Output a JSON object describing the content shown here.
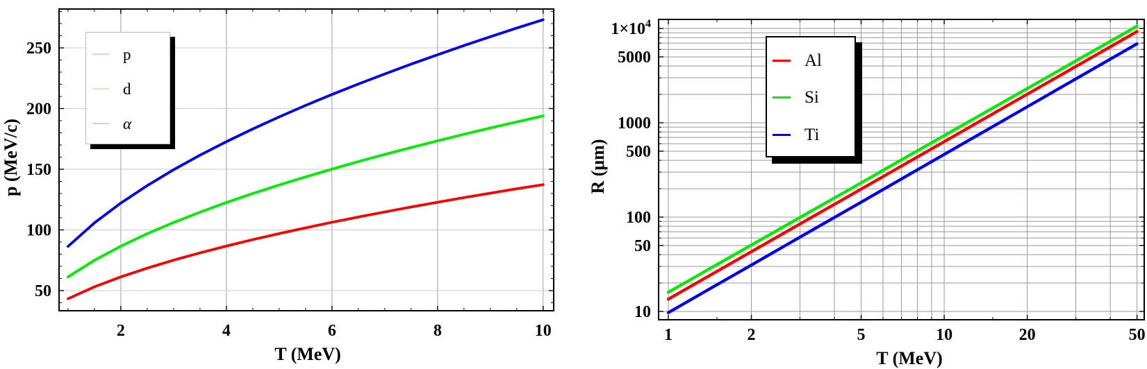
{
  "figure": {
    "background": "#ffffff",
    "frame_color": "#000000"
  },
  "chart_data": [
    {
      "type": "line",
      "title": "",
      "xlabel": "T (MeV)",
      "ylabel": "p (MeV/c)",
      "xscale": "linear",
      "yscale": "linear",
      "xlim": [
        0.83,
        10.2
      ],
      "ylim": [
        33.4,
        282
      ],
      "grid": true,
      "grid_color_x": "#9e9e9e",
      "grid_color_y": "#c9c9c9",
      "stroke_width": 3.8,
      "legend_position": "upper-left",
      "x": [
        1,
        1.5,
        2,
        2.5,
        3,
        3.5,
        4,
        4.5,
        5,
        5.5,
        6,
        6.5,
        7,
        7.5,
        8,
        8.5,
        9,
        9.5,
        10
      ],
      "series": [
        {
          "name": "p",
          "color": "#ff0000",
          "legend_swatch": "#ffc8c8",
          "values": [
            43.3,
            53.1,
            61.3,
            68.5,
            75.1,
            81.1,
            86.7,
            92.0,
            97.0,
            101.7,
            106.3,
            110.6,
            114.8,
            118.9,
            122.8,
            126.6,
            130.3,
            133.9,
            137.3
          ]
        },
        {
          "name": "d",
          "color": "#00ee00",
          "legend_swatch": "#c8efc8",
          "values": [
            61.3,
            75.0,
            86.6,
            96.9,
            106.1,
            114.6,
            122.6,
            130.0,
            137.0,
            143.7,
            150.1,
            156.3,
            162.2,
            167.9,
            173.4,
            178.8,
            184.0,
            189.0,
            193.9
          ]
        },
        {
          "name": "α",
          "color": "#0000ff",
          "legend_swatch": "#ccccf5",
          "values": [
            86.4,
            105.8,
            122.1,
            136.5,
            149.6,
            161.6,
            172.7,
            183.2,
            193.1,
            202.6,
            211.6,
            220.2,
            228.5,
            236.6,
            244.3,
            251.9,
            259.2,
            266.3,
            273.2
          ]
        }
      ],
      "x_major_ticks": [
        {
          "v": 2,
          "label": "2"
        },
        {
          "v": 4,
          "label": "4"
        },
        {
          "v": 6,
          "label": "6"
        },
        {
          "v": 8,
          "label": "8"
        },
        {
          "v": 10,
          "label": "10"
        }
      ],
      "x_minor_ticks": [
        1,
        1.5,
        2.5,
        3,
        3.5,
        4.5,
        5,
        5.5,
        6.5,
        7,
        7.5,
        8.5,
        9,
        9.5
      ],
      "y_major_ticks": [
        {
          "v": 50,
          "label": "50"
        },
        {
          "v": 100,
          "label": "100"
        },
        {
          "v": 150,
          "label": "150"
        },
        {
          "v": 200,
          "label": "200"
        },
        {
          "v": 250,
          "label": "250"
        }
      ],
      "y_minor_ticks": [
        40,
        60,
        70,
        80,
        90,
        110,
        120,
        130,
        140,
        160,
        170,
        180,
        190,
        210,
        220,
        230,
        240,
        260,
        270,
        280
      ],
      "grid_x": [
        2,
        4,
        6,
        8,
        10
      ],
      "grid_y": [
        50,
        100,
        150,
        200,
        250
      ]
    },
    {
      "type": "line",
      "title": "",
      "xlabel": "T (MeV)",
      "ylabel": "R (μm)",
      "xscale": "log",
      "yscale": "log",
      "xlim": [
        0.922,
        53.1
      ],
      "ylim": [
        8.16,
        12470
      ],
      "grid": true,
      "grid_color_x": "#979797",
      "grid_color_y": "#979797",
      "stroke_width": 4.3,
      "legend_position": "upper-left",
      "x": [
        1,
        1.5,
        2,
        3,
        5,
        7,
        10,
        15,
        20,
        30,
        50
      ],
      "series": [
        {
          "name": "Al",
          "color": "#ff0000",
          "legend_swatch": "#ff0000",
          "values": [
            13.5,
            26.6,
            43,
            84.6,
            198,
            348,
            631,
            1243,
            2009,
            3954,
            9277
          ]
        },
        {
          "name": "Si",
          "color": "#00ee00",
          "legend_swatch": "#00ee00",
          "values": [
            16,
            31.4,
            50.6,
            99.1,
            231,
            405,
            731,
            1434,
            2310,
            4530,
            10574
          ]
        },
        {
          "name": "Ti",
          "color": "#0000ff",
          "legend_swatch": "#0000ff",
          "values": [
            9.7,
            19.2,
            31,
            61.3,
            144,
            254,
            462,
            912,
            1478,
            2921,
            6878
          ]
        }
      ],
      "x_major_ticks": [
        {
          "v": 1,
          "label": "1"
        },
        {
          "v": 2,
          "label": "2"
        },
        {
          "v": 5,
          "label": "5"
        },
        {
          "v": 10,
          "label": "10"
        },
        {
          "v": 20,
          "label": "20"
        },
        {
          "v": 50,
          "label": "50"
        }
      ],
      "x_minor_ticks": [
        1.5,
        3,
        4,
        6,
        7,
        8,
        9,
        15,
        30,
        40
      ],
      "y_major_ticks": [
        {
          "v": 10,
          "label": "10"
        },
        {
          "v": 50,
          "label": "50"
        },
        {
          "v": 100,
          "label": "100"
        },
        {
          "v": 500,
          "label": "500"
        },
        {
          "v": 1000,
          "label": "1000"
        },
        {
          "v": 5000,
          "label": "5000"
        },
        {
          "v": 10000,
          "label": "1×10",
          "exp": "4"
        }
      ],
      "y_minor_ticks": [
        20,
        30,
        40,
        60,
        70,
        80,
        90,
        200,
        300,
        400,
        600,
        700,
        800,
        900,
        2000,
        3000,
        4000,
        6000,
        7000,
        8000,
        9000
      ],
      "grid_x": [
        1,
        2,
        3,
        4,
        5,
        6,
        7,
        8,
        9,
        10,
        20,
        30,
        40,
        50
      ],
      "grid_y": [
        10,
        20,
        30,
        40,
        50,
        60,
        70,
        80,
        90,
        100,
        200,
        300,
        400,
        500,
        600,
        700,
        800,
        900,
        1000,
        2000,
        3000,
        4000,
        5000,
        6000,
        7000,
        8000,
        9000,
        10000
      ]
    }
  ]
}
